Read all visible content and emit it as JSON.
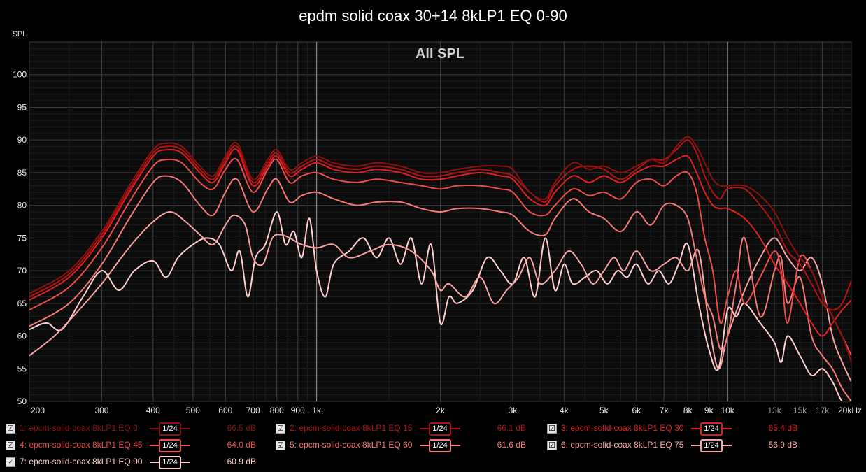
{
  "title": "epdm solid coax 30+14 8kLP1 EQ 0-90",
  "chart_data": {
    "type": "line",
    "title": "epdm solid coax 30+14 8kLP1 EQ 0-90",
    "subtitle": "All SPL",
    "ylabel": "SPL",
    "xlabel": "",
    "x_scale": "log",
    "xlim": [
      200,
      20000
    ],
    "ylim": [
      50,
      105
    ],
    "grid": true,
    "x_tick_labels": [
      "200",
      "300",
      "400",
      "500",
      "600",
      "700",
      "800",
      "900",
      "1k",
      "2k",
      "3k",
      "4k",
      "5k",
      "6k",
      "7k",
      "8k",
      "9k",
      "10k",
      "13k",
      "15k",
      "17k",
      "20kHz"
    ],
    "y_tick_labels": [
      "50",
      "55",
      "60",
      "65",
      "70",
      "75",
      "80",
      "85",
      "90",
      "95",
      "100"
    ],
    "series": [
      {
        "name": "1: epcm-solid-coax 8kLP1 EQ 0",
        "color": "#8a1010",
        "level": "66.5 dB",
        "x": [
          200,
          250,
          300,
          350,
          400,
          430,
          470,
          520,
          560,
          600,
          640,
          700,
          760,
          800,
          860,
          920,
          1000,
          1100,
          1250,
          1400,
          1600,
          1800,
          2000,
          2200,
          2500,
          2800,
          3000,
          3300,
          3600,
          3800,
          4200,
          4600,
          5000,
          5500,
          6000,
          6500,
          7000,
          7500,
          8000,
          8400,
          8800,
          9200,
          9600,
          10000,
          11000,
          12000,
          13000,
          14000,
          15000,
          16000,
          17000,
          18000,
          19000,
          20000
        ],
        "y": [
          66.5,
          70,
          76,
          83,
          88.5,
          89.5,
          89,
          86,
          84.5,
          87.5,
          89.5,
          84,
          87,
          88.5,
          85.5,
          86.5,
          87.5,
          86.5,
          86,
          86.5,
          86,
          85,
          85,
          85.5,
          86,
          86,
          85.5,
          82,
          81,
          83.5,
          86.5,
          85.5,
          86,
          85,
          86,
          87,
          86.5,
          89,
          90.5,
          89,
          86.5,
          84,
          83,
          83,
          83,
          81.5,
          79,
          75,
          72,
          70,
          66,
          63,
          60,
          56
        ]
      },
      {
        "name": "2: epcm-solid-coax 8kLP1 EQ 15",
        "color": "#b01212",
        "level": "66.1 dB",
        "x": [
          200,
          250,
          300,
          350,
          400,
          430,
          470,
          520,
          560,
          600,
          640,
          700,
          760,
          800,
          860,
          920,
          1000,
          1100,
          1250,
          1400,
          1600,
          1800,
          2000,
          2200,
          2500,
          2800,
          3000,
          3300,
          3600,
          3800,
          4200,
          4600,
          5000,
          5500,
          6000,
          6500,
          7000,
          7500,
          8000,
          8400,
          8800,
          9200,
          9600,
          10000,
          11000,
          12000,
          13000,
          14000,
          15000,
          16000,
          17000,
          18000,
          19000,
          20000
        ],
        "y": [
          66,
          69.5,
          75.5,
          82.5,
          88,
          89,
          88.5,
          85.5,
          84,
          87,
          89,
          83.5,
          86.5,
          88,
          85,
          86,
          87,
          86,
          85.5,
          86,
          85.5,
          84.5,
          84.5,
          85,
          85.5,
          85,
          84.5,
          82,
          80.5,
          83,
          85.5,
          86,
          85.5,
          84,
          85.5,
          87,
          87,
          88.5,
          90,
          88,
          84.5,
          82,
          81,
          82.5,
          82.5,
          80,
          77,
          73,
          71,
          68,
          65,
          64,
          65,
          68.5
        ]
      },
      {
        "name": "3: epcm-solid-coax 8kLP1 EQ 30",
        "color": "#e01e1e",
        "level": "65.4 dB",
        "x": [
          200,
          250,
          300,
          350,
          400,
          430,
          470,
          520,
          560,
          600,
          640,
          700,
          760,
          800,
          860,
          920,
          1000,
          1100,
          1250,
          1400,
          1600,
          1800,
          2000,
          2200,
          2500,
          2800,
          3000,
          3300,
          3600,
          3800,
          4200,
          4600,
          5000,
          5500,
          6000,
          6500,
          7000,
          7500,
          8000,
          8400,
          8800,
          9200,
          9600,
          10000,
          11000,
          12000,
          13000,
          14000,
          15000,
          16000,
          17000,
          18000,
          19000,
          20000
        ],
        "y": [
          65.5,
          69,
          75,
          82,
          87.5,
          88.5,
          88,
          85,
          83.5,
          86.5,
          88.5,
          83,
          86,
          87.5,
          84.5,
          85.5,
          86.5,
          85.5,
          85,
          85.5,
          85,
          84,
          84,
          84.5,
          85,
          84.5,
          84,
          81,
          80,
          82,
          84.5,
          83.5,
          84.5,
          83.5,
          85,
          86,
          86,
          87,
          87.5,
          85,
          82,
          80,
          79.5,
          79.5,
          78,
          75,
          71,
          68,
          65,
          62,
          60,
          62,
          64,
          65.5
        ]
      },
      {
        "name": "4: epcm-solid-coax 8kLP1 EQ 45",
        "color": "#ee4b4b",
        "level": "64.0 dB",
        "x": [
          200,
          250,
          300,
          350,
          400,
          430,
          470,
          520,
          560,
          600,
          640,
          700,
          760,
          800,
          860,
          920,
          1000,
          1100,
          1250,
          1400,
          1600,
          1800,
          2000,
          2200,
          2500,
          2800,
          3000,
          3300,
          3600,
          3800,
          4200,
          4600,
          5000,
          5500,
          6000,
          6500,
          7000,
          7500,
          8000,
          8400,
          8800,
          9200,
          9600,
          10000,
          10500,
          11000,
          12000,
          13000,
          13500,
          14000,
          15000,
          16000,
          17000,
          18000,
          19000,
          20000
        ],
        "y": [
          64,
          67.5,
          73.5,
          80.5,
          86,
          87,
          86.5,
          83.5,
          82.5,
          85.5,
          87,
          82,
          85.5,
          87,
          83.5,
          84.5,
          85,
          84,
          83.5,
          84,
          83.5,
          83,
          82.5,
          83,
          83,
          82.5,
          82,
          79,
          78.5,
          80,
          82.5,
          81.5,
          82,
          81,
          83.5,
          84,
          83,
          84.5,
          85,
          82,
          75,
          70,
          62,
          66,
          70,
          65,
          69,
          73,
          70,
          62,
          72,
          70,
          66,
          63,
          60,
          57
        ]
      },
      {
        "name": "5: epcm-solid-coax 8kLP1 EQ 60",
        "color": "#f57878",
        "level": "61.6 dB",
        "x": [
          200,
          250,
          300,
          350,
          400,
          430,
          470,
          520,
          560,
          600,
          640,
          700,
          760,
          800,
          860,
          920,
          1000,
          1100,
          1250,
          1400,
          1600,
          1800,
          2000,
          2200,
          2500,
          2800,
          3000,
          3300,
          3600,
          3800,
          4200,
          4600,
          5000,
          5500,
          6000,
          6500,
          7000,
          7500,
          8000,
          8400,
          8800,
          9200,
          9600,
          10000,
          10500,
          11000,
          12000,
          13000,
          13500,
          14000,
          15000,
          16000,
          17000,
          18000,
          19000,
          20000
        ],
        "y": [
          61.5,
          65,
          71,
          78,
          83.5,
          84.5,
          83.5,
          80,
          78.5,
          82,
          84,
          79,
          82.5,
          84,
          80.5,
          81.5,
          82,
          81,
          80,
          80.5,
          80.5,
          79.5,
          79,
          79.5,
          79.5,
          79,
          78.5,
          76,
          75.5,
          78,
          81,
          79,
          78,
          76,
          79,
          77,
          80,
          80,
          78,
          72,
          66,
          63,
          58,
          60,
          68,
          75,
          63,
          70,
          72,
          65,
          69,
          60,
          57,
          55,
          52,
          50
        ]
      },
      {
        "name": "6: epcm-solid-coax 8kLP1 EQ 75",
        "color": "#f8a3a3",
        "level": "56.9 dB",
        "x": [
          200,
          230,
          260,
          300,
          330,
          360,
          400,
          440,
          480,
          520,
          560,
          600,
          630,
          670,
          700,
          740,
          780,
          820,
          860,
          920,
          1000,
          1100,
          1200,
          1350,
          1500,
          1700,
          1900,
          2000,
          2100,
          2300,
          2500,
          2700,
          2900,
          3100,
          3300,
          3500,
          3800,
          4100,
          4400,
          4700,
          5000,
          5300,
          5600,
          6000,
          6500,
          7000,
          7500,
          8000,
          8500,
          9000,
          9500,
          10000,
          11000,
          12000,
          13000,
          14000,
          15000,
          16000,
          17000,
          18000,
          19000,
          20000
        ],
        "y": [
          57,
          60,
          63.5,
          68,
          71.5,
          74.5,
          77.5,
          79,
          77.5,
          75.5,
          74,
          77,
          78.5,
          77,
          72,
          71,
          75,
          75.5,
          75,
          74,
          73.5,
          74,
          72,
          73,
          74,
          73,
          70,
          67,
          68,
          66,
          69,
          65,
          67,
          69,
          72,
          68,
          70,
          73,
          71,
          68,
          70,
          72,
          70,
          73,
          70,
          71,
          72,
          70,
          73,
          62,
          55,
          60,
          67,
          72,
          75,
          72,
          70,
          72,
          68,
          60,
          56,
          53
        ]
      },
      {
        "name": "7: epcm-solid-coax 8kLP1 EQ 90",
        "color": "#ffcece",
        "level": "60.9 dB",
        "x": [
          200,
          220,
          240,
          270,
          300,
          330,
          360,
          400,
          430,
          460,
          500,
          540,
          580,
          620,
          650,
          680,
          710,
          750,
          800,
          840,
          880,
          920,
          960,
          1000,
          1050,
          1100,
          1200,
          1300,
          1400,
          1500,
          1600,
          1700,
          1800,
          1900,
          2000,
          2100,
          2200,
          2400,
          2600,
          2800,
          3000,
          3200,
          3400,
          3600,
          3800,
          4000,
          4200,
          4500,
          4800,
          5100,
          5400,
          5700,
          6000,
          6400,
          6800,
          7200,
          7600,
          8000,
          8500,
          9000,
          9500,
          10000,
          10500,
          11000,
          12000,
          13000,
          13500,
          14000,
          15000,
          16000,
          17000,
          18000,
          19000,
          20000
        ],
        "y": [
          61,
          62,
          61,
          66,
          70,
          67,
          70,
          71.5,
          69,
          72,
          74,
          75,
          74,
          70,
          73,
          66,
          72,
          74,
          79,
          74,
          76,
          72,
          78,
          70,
          66,
          71,
          73,
          75,
          72,
          75,
          71,
          75,
          68,
          74,
          62,
          66,
          65,
          67,
          72,
          70,
          68,
          72,
          66,
          75,
          67,
          71,
          68,
          69,
          70,
          68,
          70,
          69,
          71,
          68,
          70,
          68,
          71,
          74,
          65,
          58,
          55,
          64,
          63,
          65,
          62,
          59,
          56,
          60,
          57,
          54,
          55,
          53,
          50,
          50
        ]
      }
    ]
  },
  "legend": [
    {
      "name": "1: epcm-solid-coax 8kLP1 EQ 0",
      "smoothing": "1/24",
      "level": "66.5 dB",
      "color": "#8a1010",
      "checked": "☑"
    },
    {
      "name": "2: epcm-solid-coax 8kLP1 EQ 15",
      "smoothing": "1/24",
      "level": "66.1 dB",
      "color": "#b01212",
      "checked": "☑"
    },
    {
      "name": "3: epcm-solid-coax 8kLP1 EQ 30",
      "smoothing": "1/24",
      "level": "65.4 dB",
      "color": "#e01e1e",
      "checked": "☑"
    },
    {
      "name": "4: epcm-solid-coax 8kLP1 EQ 45",
      "smoothing": "1/24",
      "level": "64.0 dB",
      "color": "#ee4b4b",
      "checked": "☑"
    },
    {
      "name": "5: epcm-solid-coax 8kLP1 EQ 60",
      "smoothing": "1/24",
      "level": "61.6 dB",
      "color": "#f57878",
      "checked": "☑"
    },
    {
      "name": "6: epcm-solid-coax 8kLP1 EQ 75",
      "smoothing": "1/24",
      "level": "56.9 dB",
      "color": "#f8a3a3",
      "checked": "☑"
    },
    {
      "name": "7: epcm-solid-coax 8kLP1 EQ 90",
      "smoothing": "1/24",
      "level": "60.9 dB",
      "color": "#ffcece",
      "checked": "☑"
    }
  ]
}
